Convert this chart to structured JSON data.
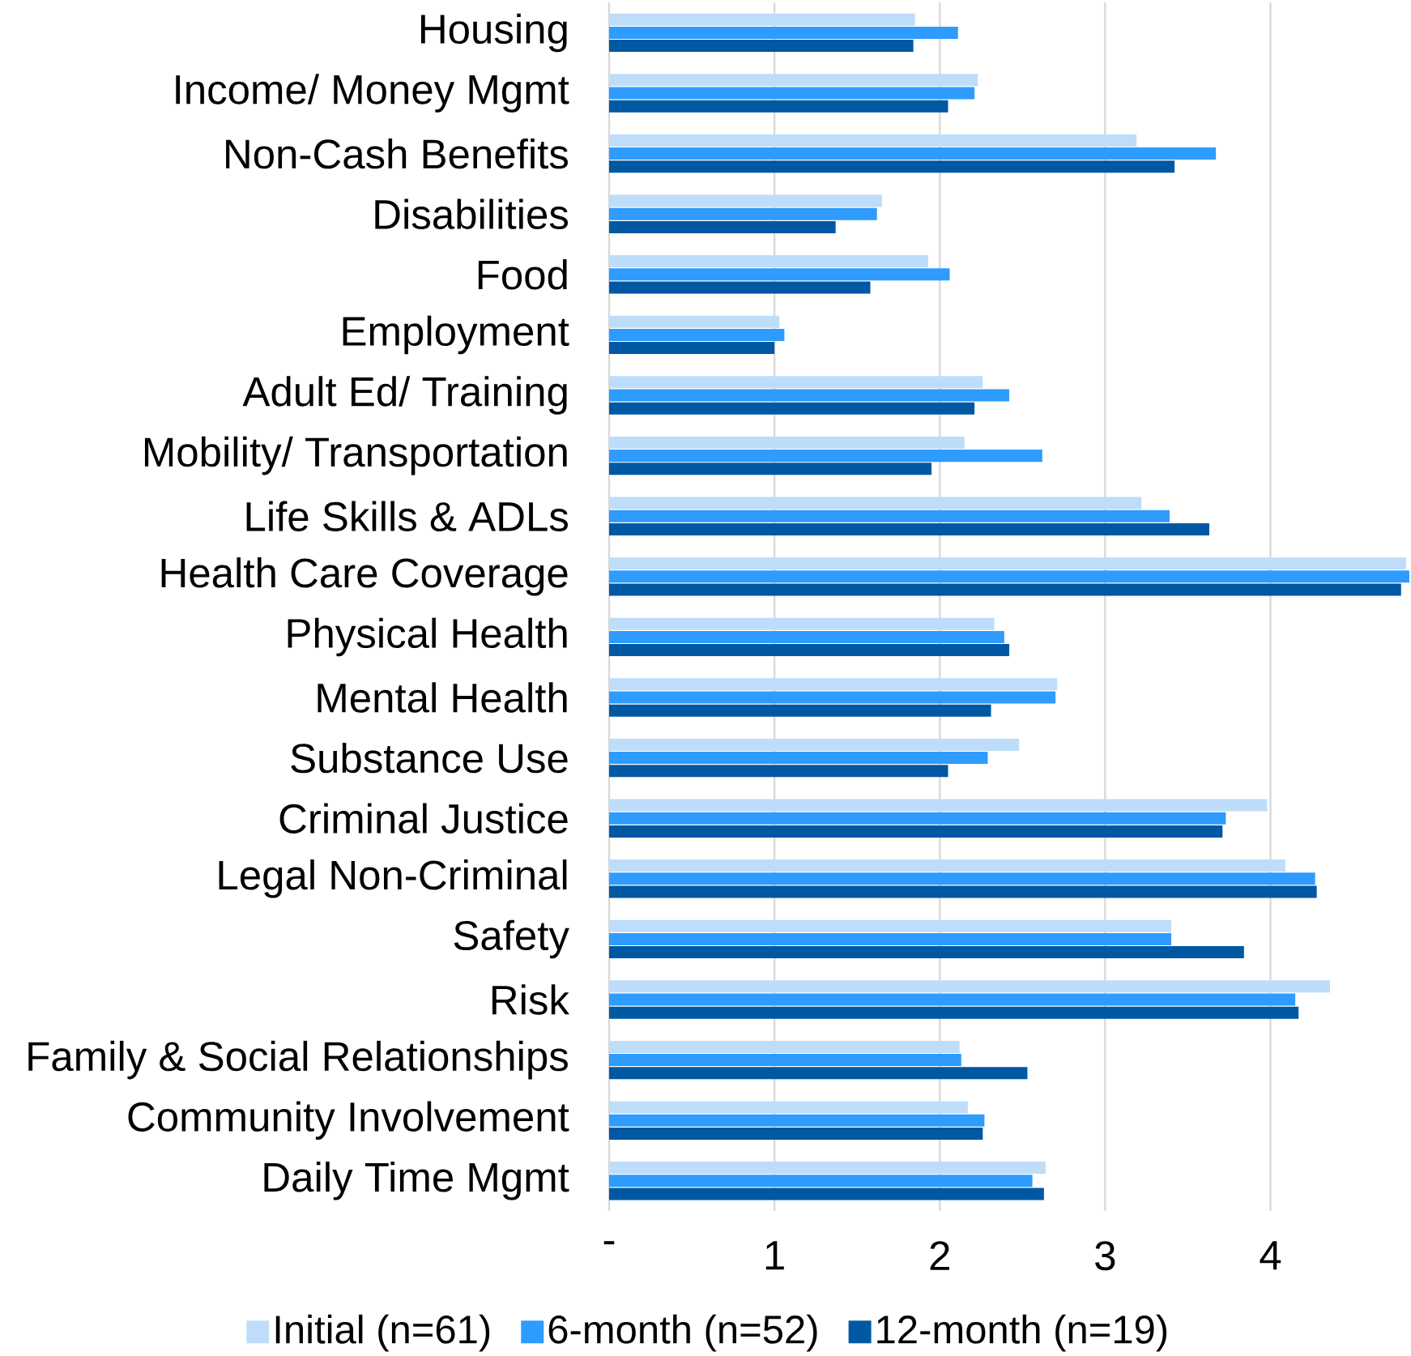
{
  "chart_data": {
    "type": "bar",
    "orientation": "horizontal",
    "categories": [
      "Housing",
      "Income/ Money Mgmt",
      "Non-Cash Benefits",
      "Disabilities",
      "Food",
      "Employment",
      "Adult Ed/ Training",
      "Mobility/ Transportation",
      "Life Skills & ADLs",
      "Health Care Coverage",
      "Physical Health",
      "Mental Health",
      "Substance Use",
      "Criminal Justice",
      "Legal Non-Criminal",
      "Safety",
      "Risk",
      "Family & Social Relationships",
      "Community Involvement",
      "Daily Time Mgmt"
    ],
    "series": [
      {
        "name": "Initial (n=61)",
        "color": "#bdddfb",
        "values": [
          1.85,
          2.23,
          3.19,
          1.65,
          1.93,
          1.03,
          2.26,
          2.15,
          3.22,
          4.82,
          2.33,
          2.71,
          2.48,
          3.98,
          4.09,
          3.4,
          4.36,
          2.12,
          2.17,
          2.64
        ]
      },
      {
        "name": "6-month (n=52)",
        "color": "#2e9bff",
        "values": [
          2.11,
          2.21,
          3.67,
          1.62,
          2.06,
          1.06,
          2.42,
          2.62,
          3.39,
          4.84,
          2.39,
          2.7,
          2.29,
          3.73,
          4.27,
          3.4,
          4.15,
          2.13,
          2.27,
          2.56
        ]
      },
      {
        "name": "12-month (n=19)",
        "color": "#0058a3",
        "values": [
          1.84,
          2.05,
          3.42,
          1.37,
          1.58,
          1.0,
          2.21,
          1.95,
          3.63,
          4.79,
          2.42,
          2.31,
          2.05,
          3.71,
          4.28,
          3.84,
          4.17,
          2.53,
          2.26,
          2.63
        ]
      }
    ],
    "xlim": [
      0,
      4.85
    ],
    "xticks": [
      {
        "value": 0,
        "label": "-"
      },
      1,
      2,
      3,
      4
    ],
    "grid": "x",
    "legend": "bottom"
  }
}
